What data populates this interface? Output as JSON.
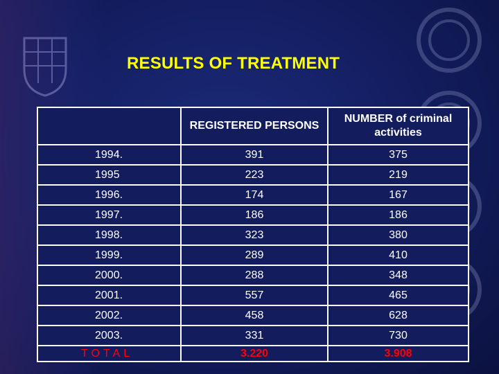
{
  "title": "RESULTS OF TREATMENT",
  "table": {
    "headers": [
      "",
      "REGISTERED PERSONS",
      "NUMBER of criminal activities"
    ],
    "rows": [
      {
        "year": "1994.",
        "registered": "391",
        "criminal": "375"
      },
      {
        "year": "1995",
        "registered": "223",
        "criminal": "219"
      },
      {
        "year": "1996.",
        "registered": "174",
        "criminal": "167"
      },
      {
        "year": "1997.",
        "registered": "186",
        "criminal": "186"
      },
      {
        "year": "1998.",
        "registered": "323",
        "criminal": "380"
      },
      {
        "year": "1999.",
        "registered": "289",
        "criminal": "410"
      },
      {
        "year": "2000.",
        "registered": "288",
        "criminal": "348"
      },
      {
        "year": "2001.",
        "registered": "557",
        "criminal": "465"
      },
      {
        "year": "2002.",
        "registered": "458",
        "criminal": "628"
      },
      {
        "year": "2003.",
        "registered": "331",
        "criminal": "730"
      }
    ],
    "total": {
      "label": "TOTAL",
      "registered": "3.220",
      "criminal": "3.908"
    }
  },
  "colors": {
    "title": "#ffff00",
    "total": "#ff0000",
    "cell_bg": "#131d5e",
    "grid": "#ffffff"
  },
  "icons": {
    "background_left": "crest-icon",
    "background_right": "police-badge-icon"
  }
}
